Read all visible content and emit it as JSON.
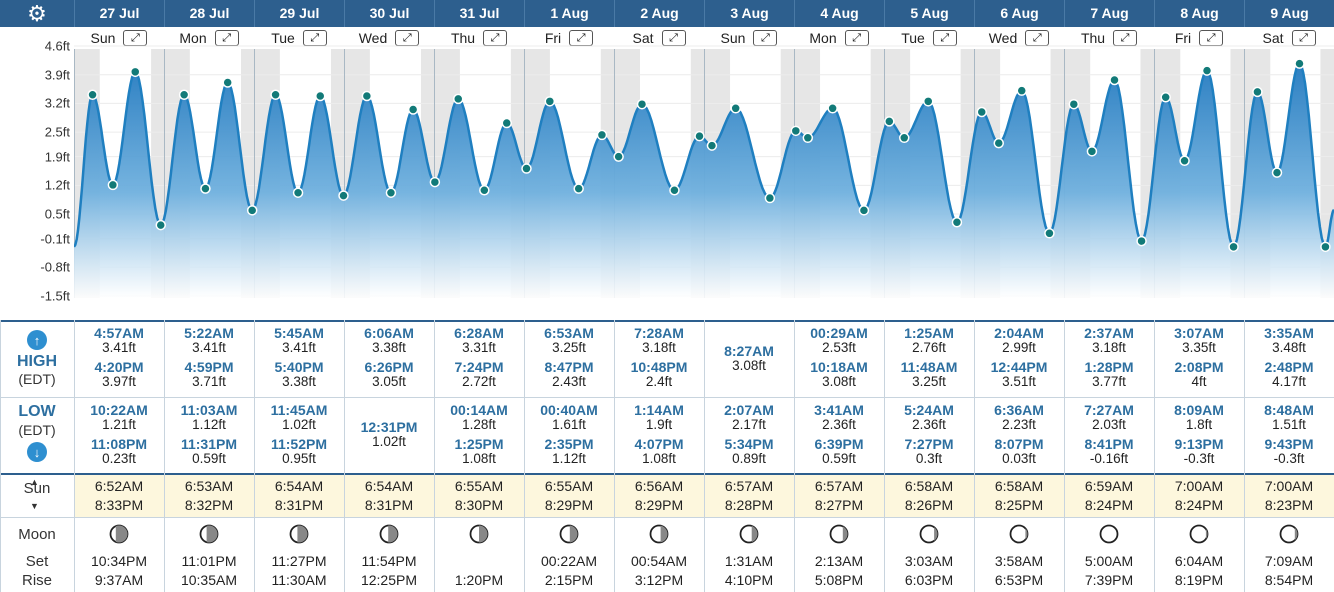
{
  "header": {
    "settings_icon": "gear-icon",
    "dates": [
      "27 Jul",
      "28 Jul",
      "29 Jul",
      "30 Jul",
      "31 Jul",
      "1 Aug",
      "2 Aug",
      "3 Aug",
      "4 Aug",
      "5 Aug",
      "6 Aug",
      "7 Aug",
      "8 Aug",
      "9 Aug"
    ],
    "weekdays": [
      "Sun",
      "Mon",
      "Tue",
      "Wed",
      "Thu",
      "Fri",
      "Sat",
      "Sun",
      "Mon",
      "Tue",
      "Wed",
      "Thu",
      "Fri",
      "Sat"
    ],
    "expand_glyph": "⤢"
  },
  "labels": {
    "high": "HIGH",
    "high_tz": "(EDT)",
    "low": "LOW",
    "low_tz": "(EDT)",
    "sun": "Sun",
    "moon": "Moon",
    "set": "Set",
    "rise": "Rise",
    "up_arrow": "↑",
    "down_arrow": "↓"
  },
  "colors": {
    "header_bg": "#2d5f8e",
    "tide_line": "#1f7fc0",
    "time_text": "#2d6fa0",
    "accent_button": "#2e8fd0"
  },
  "chart_data": {
    "type": "area",
    "ylabel_unit": "ft",
    "y_ticks": [
      "4.6ft",
      "3.9ft",
      "3.2ft",
      "2.5ft",
      "1.9ft",
      "1.2ft",
      "0.5ft",
      "-0.1ft",
      "-0.8ft",
      "-1.5ft"
    ],
    "ylim": [
      -1.5,
      4.6
    ],
    "grid": true,
    "x_start": "27 Jul 00:00",
    "x_end": "9 Aug 24:00",
    "tide_points": [
      {
        "t": "27 Jul 04:57AM",
        "h": 3.41,
        "type": "high"
      },
      {
        "t": "27 Jul 10:22AM",
        "h": 1.21,
        "type": "low"
      },
      {
        "t": "27 Jul 04:20PM",
        "h": 3.97,
        "type": "high"
      },
      {
        "t": "27 Jul 11:08PM",
        "h": 0.23,
        "type": "low"
      },
      {
        "t": "28 Jul 05:22AM",
        "h": 3.41,
        "type": "high"
      },
      {
        "t": "28 Jul 11:03AM",
        "h": 1.12,
        "type": "low"
      },
      {
        "t": "28 Jul 04:59PM",
        "h": 3.71,
        "type": "high"
      },
      {
        "t": "28 Jul 11:31PM",
        "h": 0.59,
        "type": "low"
      },
      {
        "t": "29 Jul 05:45AM",
        "h": 3.41,
        "type": "high"
      },
      {
        "t": "29 Jul 11:45AM",
        "h": 1.02,
        "type": "low"
      },
      {
        "t": "29 Jul 05:40PM",
        "h": 3.38,
        "type": "high"
      },
      {
        "t": "29 Jul 11:52PM",
        "h": 0.95,
        "type": "low"
      },
      {
        "t": "30 Jul 06:06AM",
        "h": 3.38,
        "type": "high"
      },
      {
        "t": "30 Jul 12:31PM",
        "h": 1.02,
        "type": "low"
      },
      {
        "t": "30 Jul 06:26PM",
        "h": 3.05,
        "type": "high"
      },
      {
        "t": "31 Jul 00:14AM",
        "h": 1.28,
        "type": "low"
      },
      {
        "t": "31 Jul 06:28AM",
        "h": 3.31,
        "type": "high"
      },
      {
        "t": "31 Jul 01:25PM",
        "h": 1.08,
        "type": "low"
      },
      {
        "t": "31 Jul 07:24PM",
        "h": 2.72,
        "type": "high"
      },
      {
        "t": "1 Aug 00:40AM",
        "h": 1.61,
        "type": "low"
      },
      {
        "t": "1 Aug 06:53AM",
        "h": 3.25,
        "type": "high"
      },
      {
        "t": "1 Aug 02:35PM",
        "h": 1.12,
        "type": "low"
      },
      {
        "t": "1 Aug 08:47PM",
        "h": 2.43,
        "type": "high"
      },
      {
        "t": "2 Aug 01:14AM",
        "h": 1.9,
        "type": "low"
      },
      {
        "t": "2 Aug 07:28AM",
        "h": 3.18,
        "type": "high"
      },
      {
        "t": "2 Aug 04:07PM",
        "h": 1.08,
        "type": "low"
      },
      {
        "t": "2 Aug 10:48PM",
        "h": 2.4,
        "type": "high"
      },
      {
        "t": "3 Aug 02:07AM",
        "h": 2.17,
        "type": "low"
      },
      {
        "t": "3 Aug 08:27AM",
        "h": 3.08,
        "type": "high"
      },
      {
        "t": "3 Aug 05:34PM",
        "h": 0.89,
        "type": "low"
      },
      {
        "t": "4 Aug 00:29AM",
        "h": 2.53,
        "type": "high"
      },
      {
        "t": "4 Aug 03:41AM",
        "h": 2.36,
        "type": "low"
      },
      {
        "t": "4 Aug 10:18AM",
        "h": 3.08,
        "type": "high"
      },
      {
        "t": "4 Aug 06:39PM",
        "h": 0.59,
        "type": "low"
      },
      {
        "t": "5 Aug 01:25AM",
        "h": 2.76,
        "type": "high"
      },
      {
        "t": "5 Aug 05:24AM",
        "h": 2.36,
        "type": "low"
      },
      {
        "t": "5 Aug 11:48AM",
        "h": 3.25,
        "type": "high"
      },
      {
        "t": "5 Aug 07:27PM",
        "h": 0.3,
        "type": "low"
      },
      {
        "t": "6 Aug 02:04AM",
        "h": 2.99,
        "type": "high"
      },
      {
        "t": "6 Aug 06:36AM",
        "h": 2.23,
        "type": "low"
      },
      {
        "t": "6 Aug 12:44PM",
        "h": 3.51,
        "type": "high"
      },
      {
        "t": "6 Aug 08:07PM",
        "h": 0.03,
        "type": "low"
      },
      {
        "t": "7 Aug 02:37AM",
        "h": 3.18,
        "type": "high"
      },
      {
        "t": "7 Aug 07:27AM",
        "h": 2.03,
        "type": "low"
      },
      {
        "t": "7 Aug 01:28PM",
        "h": 3.77,
        "type": "high"
      },
      {
        "t": "7 Aug 08:41PM",
        "h": -0.16,
        "type": "low"
      },
      {
        "t": "8 Aug 03:07AM",
        "h": 3.35,
        "type": "high"
      },
      {
        "t": "8 Aug 08:09AM",
        "h": 1.8,
        "type": "low"
      },
      {
        "t": "8 Aug 02:08PM",
        "h": 4.0,
        "type": "high"
      },
      {
        "t": "8 Aug 09:13PM",
        "h": -0.3,
        "type": "low"
      },
      {
        "t": "9 Aug 03:35AM",
        "h": 3.48,
        "type": "high"
      },
      {
        "t": "9 Aug 08:48AM",
        "h": 1.51,
        "type": "low"
      },
      {
        "t": "9 Aug 02:48PM",
        "h": 4.17,
        "type": "high"
      },
      {
        "t": "9 Aug 09:43PM",
        "h": -0.3,
        "type": "low"
      }
    ]
  },
  "days": [
    {
      "high": [
        {
          "time": "4:57AM",
          "height": "3.41ft"
        },
        {
          "time": "4:20PM",
          "height": "3.97ft"
        }
      ],
      "low": [
        {
          "time": "10:22AM",
          "height": "1.21ft"
        },
        {
          "time": "11:08PM",
          "height": "0.23ft"
        }
      ],
      "sunrise": "6:52AM",
      "sunset": "8:33PM",
      "moon_set": "10:34PM",
      "moon_rise": "9:37AM",
      "moon_phase": 0.3
    },
    {
      "high": [
        {
          "time": "5:22AM",
          "height": "3.41ft"
        },
        {
          "time": "4:59PM",
          "height": "3.71ft"
        }
      ],
      "low": [
        {
          "time": "11:03AM",
          "height": "1.12ft"
        },
        {
          "time": "11:31PM",
          "height": "0.59ft"
        }
      ],
      "sunrise": "6:53AM",
      "sunset": "8:32PM",
      "moon_set": "11:01PM",
      "moon_rise": "10:35AM",
      "moon_phase": 0.35
    },
    {
      "high": [
        {
          "time": "5:45AM",
          "height": "3.41ft"
        },
        {
          "time": "5:40PM",
          "height": "3.38ft"
        }
      ],
      "low": [
        {
          "time": "11:45AM",
          "height": "1.02ft"
        },
        {
          "time": "11:52PM",
          "height": "0.95ft"
        }
      ],
      "sunrise": "6:54AM",
      "sunset": "8:31PM",
      "moon_set": "11:27PM",
      "moon_rise": "11:30AM",
      "moon_phase": 0.4
    },
    {
      "high": [
        {
          "time": "6:06AM",
          "height": "3.38ft"
        },
        {
          "time": "6:26PM",
          "height": "3.05ft"
        }
      ],
      "low": [
        {
          "time": "12:31PM",
          "height": "1.02ft"
        }
      ],
      "sunrise": "6:54AM",
      "sunset": "8:31PM",
      "moon_set": "11:54PM",
      "moon_rise": "12:25PM",
      "moon_phase": 0.45
    },
    {
      "high": [
        {
          "time": "6:28AM",
          "height": "3.31ft"
        },
        {
          "time": "7:24PM",
          "height": "2.72ft"
        }
      ],
      "low": [
        {
          "time": "00:14AM",
          "height": "1.28ft"
        },
        {
          "time": "1:25PM",
          "height": "1.08ft"
        }
      ],
      "sunrise": "6:55AM",
      "sunset": "8:30PM",
      "moon_set": "",
      "moon_rise": "1:20PM",
      "moon_phase": 0.5
    },
    {
      "high": [
        {
          "time": "6:53AM",
          "height": "3.25ft"
        },
        {
          "time": "8:47PM",
          "height": "2.43ft"
        }
      ],
      "low": [
        {
          "time": "00:40AM",
          "height": "1.61ft"
        },
        {
          "time": "2:35PM",
          "height": "1.12ft"
        }
      ],
      "sunrise": "6:55AM",
      "sunset": "8:29PM",
      "moon_set": "00:22AM",
      "moon_rise": "2:15PM",
      "moon_phase": 0.55
    },
    {
      "high": [
        {
          "time": "7:28AM",
          "height": "3.18ft"
        },
        {
          "time": "10:48PM",
          "height": "2.4ft"
        }
      ],
      "low": [
        {
          "time": "1:14AM",
          "height": "1.9ft"
        },
        {
          "time": "4:07PM",
          "height": "1.08ft"
        }
      ],
      "sunrise": "6:56AM",
      "sunset": "8:29PM",
      "moon_set": "00:54AM",
      "moon_rise": "3:12PM",
      "moon_phase": 0.6
    },
    {
      "high": [
        {
          "time": "8:27AM",
          "height": "3.08ft"
        }
      ],
      "low": [
        {
          "time": "2:07AM",
          "height": "2.17ft"
        },
        {
          "time": "5:34PM",
          "height": "0.89ft"
        }
      ],
      "sunrise": "6:57AM",
      "sunset": "8:28PM",
      "moon_set": "1:31AM",
      "moon_rise": "4:10PM",
      "moon_phase": 0.67
    },
    {
      "high": [
        {
          "time": "00:29AM",
          "height": "2.53ft"
        },
        {
          "time": "10:18AM",
          "height": "3.08ft"
        }
      ],
      "low": [
        {
          "time": "3:41AM",
          "height": "2.36ft"
        },
        {
          "time": "6:39PM",
          "height": "0.59ft"
        }
      ],
      "sunrise": "6:57AM",
      "sunset": "8:27PM",
      "moon_set": "2:13AM",
      "moon_rise": "5:08PM",
      "moon_phase": 0.74
    },
    {
      "high": [
        {
          "time": "1:25AM",
          "height": "2.76ft"
        },
        {
          "time": "11:48AM",
          "height": "3.25ft"
        }
      ],
      "low": [
        {
          "time": "5:24AM",
          "height": "2.36ft"
        },
        {
          "time": "7:27PM",
          "height": "0.3ft"
        }
      ],
      "sunrise": "6:58AM",
      "sunset": "8:26PM",
      "moon_set": "3:03AM",
      "moon_rise": "6:03PM",
      "moon_phase": 0.82
    },
    {
      "high": [
        {
          "time": "2:04AM",
          "height": "2.99ft"
        },
        {
          "time": "12:44PM",
          "height": "3.51ft"
        }
      ],
      "low": [
        {
          "time": "6:36AM",
          "height": "2.23ft"
        },
        {
          "time": "8:07PM",
          "height": "0.03ft"
        }
      ],
      "sunrise": "6:58AM",
      "sunset": "8:25PM",
      "moon_set": "3:58AM",
      "moon_rise": "6:53PM",
      "moon_phase": 0.9
    },
    {
      "high": [
        {
          "time": "2:37AM",
          "height": "3.18ft"
        },
        {
          "time": "1:28PM",
          "height": "3.77ft"
        }
      ],
      "low": [
        {
          "time": "7:27AM",
          "height": "2.03ft"
        },
        {
          "time": "8:41PM",
          "height": "-0.16ft"
        }
      ],
      "sunrise": "6:59AM",
      "sunset": "8:24PM",
      "moon_set": "5:00AM",
      "moon_rise": "7:39PM",
      "moon_phase": 1.0
    },
    {
      "high": [
        {
          "time": "3:07AM",
          "height": "3.35ft"
        },
        {
          "time": "2:08PM",
          "height": "4ft"
        }
      ],
      "low": [
        {
          "time": "8:09AM",
          "height": "1.8ft"
        },
        {
          "time": "9:13PM",
          "height": "-0.3ft"
        }
      ],
      "sunrise": "7:00AM",
      "sunset": "8:24PM",
      "moon_set": "6:04AM",
      "moon_rise": "8:19PM",
      "moon_phase": 0.93
    },
    {
      "high": [
        {
          "time": "3:35AM",
          "height": "3.48ft"
        },
        {
          "time": "2:48PM",
          "height": "4.17ft"
        }
      ],
      "low": [
        {
          "time": "8:48AM",
          "height": "1.51ft"
        },
        {
          "time": "9:43PM",
          "height": "-0.3ft"
        }
      ],
      "sunrise": "7:00AM",
      "sunset": "8:23PM",
      "moon_set": "7:09AM",
      "moon_rise": "8:54PM",
      "moon_phase": 0.86
    }
  ]
}
